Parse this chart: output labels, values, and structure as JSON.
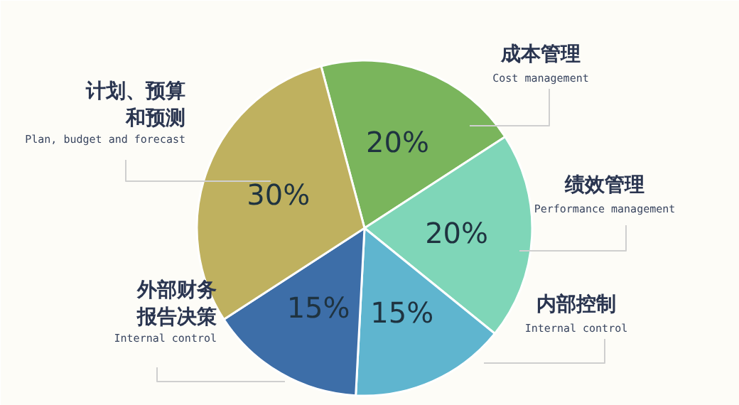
{
  "chart_data": {
    "type": "pie",
    "categories": [
      "成本管理\nCost management",
      "绩效管理\nPerformance management",
      "内部控制\nInternal control",
      "外部财务报告决策\nInternal control",
      "计划、预算和预测\nPlan, budget and forecast"
    ],
    "values": [
      20,
      20,
      15,
      15,
      30
    ],
    "colors": [
      "#7ab55c",
      "#7fd6b8",
      "#5fb5cf",
      "#3d6ea8",
      "#bfb15f"
    ],
    "value_labels": [
      "20%",
      "20%",
      "15%",
      "15%",
      "30%"
    ]
  }
}
